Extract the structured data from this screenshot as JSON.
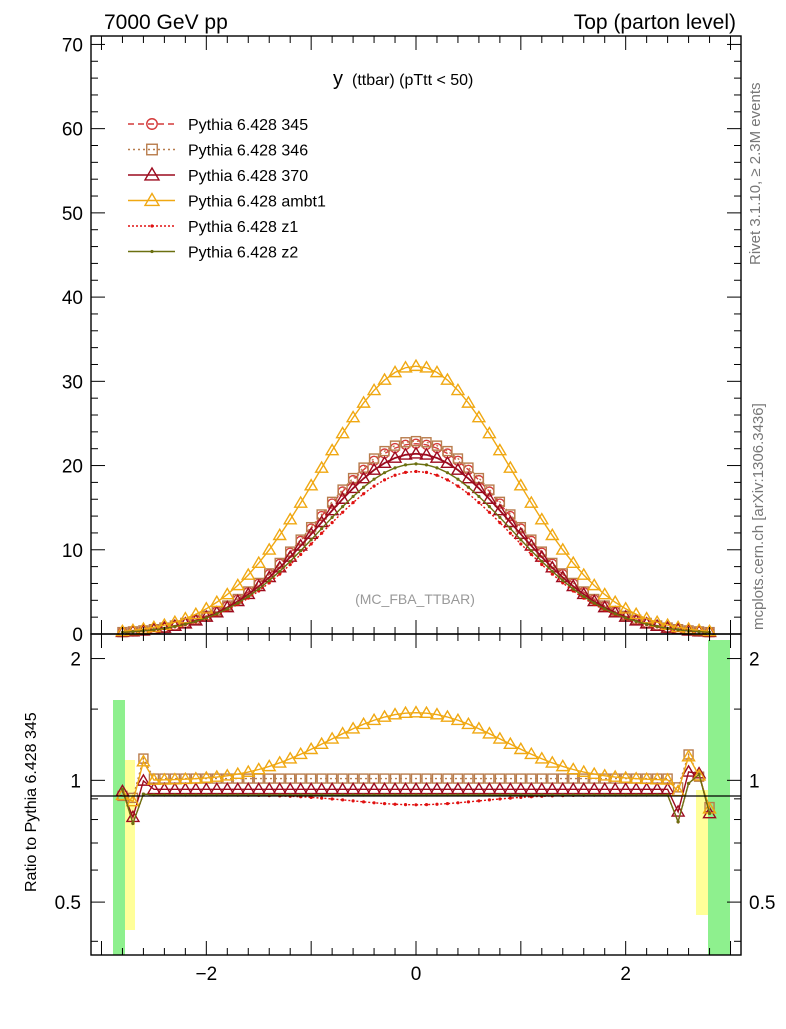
{
  "header": {
    "left": "7000 GeV pp",
    "right": "Top (parton level)"
  },
  "side_labels": {
    "rivet": "Rivet 3.1.10, ≥ 2.3M events",
    "mcplots": "mcplots.cern.ch [arXiv:1306.3436]"
  },
  "chart_data": [
    {
      "type": "line",
      "title_main": "y",
      "title_sub": "(ttbar) (pTtt < 50)",
      "watermark": "(MC_FBA_TTBAR)",
      "xlim": [
        -3.1,
        3.1
      ],
      "ylim": [
        0,
        71
      ],
      "xticks": [
        "−2",
        "0",
        "2"
      ],
      "yticks": [
        "0",
        "10",
        "20",
        "30",
        "40",
        "50",
        "60",
        "70"
      ],
      "legend_position": "top-left",
      "series": [
        {
          "name": "Pythia 6.428 345",
          "color": "#d43a3a",
          "marker": "circle",
          "dash": "6,4",
          "peak": 22.6
        },
        {
          "name": "Pythia 6.428 346",
          "color": "#b87c4c",
          "marker": "square",
          "dash": "2,3",
          "peak": 22.9
        },
        {
          "name": "Pythia 6.428 370",
          "color": "#9c0a1e",
          "marker": "triangle",
          "dash": "",
          "peak": 21.4
        },
        {
          "name": "Pythia 6.428 ambt1",
          "color": "#f0a812",
          "marker": "triangle",
          "dash": "",
          "peak": 31.8
        },
        {
          "name": "Pythia 6.428 z1",
          "color": "#e01010",
          "marker": "dot",
          "dash": "2,2",
          "peak": 19.3
        },
        {
          "name": "Pythia 6.428 z2",
          "color": "#6b7010",
          "marker": "dot",
          "dash": "",
          "peak": 20.2
        }
      ],
      "shape": {
        "center": 0.0,
        "sigma": 0.92,
        "xmin": -2.85,
        "xmax": 2.85,
        "bins": 57
      }
    },
    {
      "type": "line",
      "ylabel": "Ratio to Pythia 6.428 345",
      "ylim": [
        0.37,
        2.3
      ],
      "yscale": "log",
      "xticks": [
        "−2",
        "0",
        "2"
      ],
      "yticks": [
        "0.5",
        "1",
        "2"
      ],
      "reference_line": 1,
      "ratio_series": [
        {
          "name": "Pythia 6.428 346",
          "base": 1.01
        },
        {
          "name": "Pythia 6.428 370",
          "base": 0.95
        },
        {
          "name": "Pythia 6.428 ambt1",
          "base": 1.0,
          "peak_ratio": 1.47
        },
        {
          "name": "Pythia 6.428 z1",
          "base": 0.92,
          "center_ratio": 0.87
        },
        {
          "name": "Pythia 6.428 z2",
          "base": 0.92
        }
      ]
    }
  ]
}
